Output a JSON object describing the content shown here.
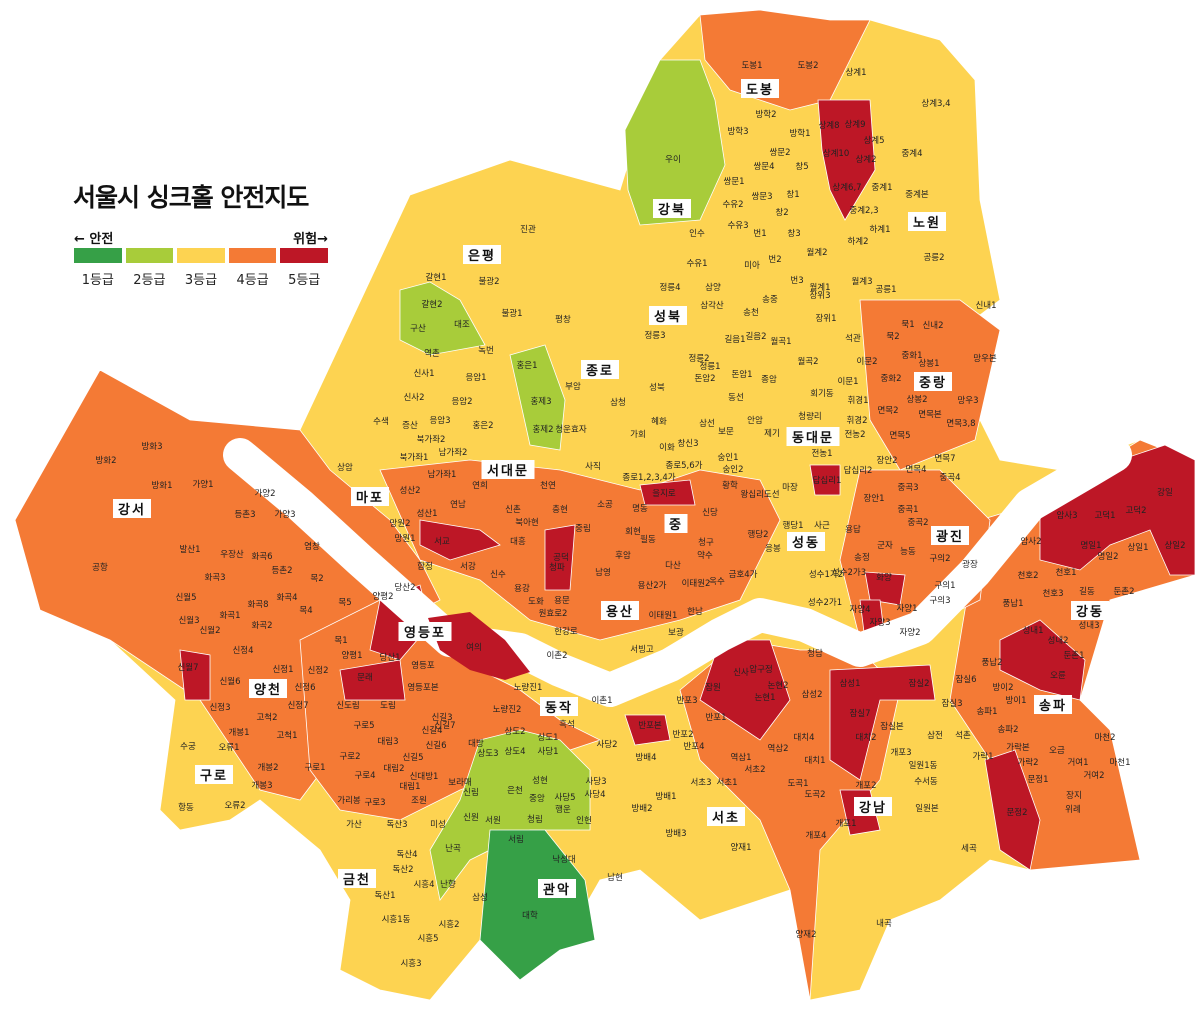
{
  "title": "서울시 싱크홀 안전지도",
  "legend": {
    "safe_label": "← 안전",
    "danger_label": "위험→",
    "grades": [
      {
        "label": "1등급",
        "color": "#36a047"
      },
      {
        "label": "2등급",
        "color": "#a8cc3a"
      },
      {
        "label": "3등급",
        "color": "#fdd351"
      },
      {
        "label": "4등급",
        "color": "#f47a35"
      },
      {
        "label": "5등급",
        "color": "#bd1726"
      }
    ]
  },
  "districts": [
    "도봉",
    "강북",
    "노원",
    "은평",
    "성북",
    "종로",
    "중랑",
    "동대문",
    "서대문",
    "마포",
    "중",
    "광진",
    "성동",
    "강서",
    "용산",
    "영등포",
    "강동",
    "양천",
    "송파",
    "동작",
    "구로",
    "강남",
    "서초",
    "금천",
    "관악"
  ],
  "dongs": [
    "도봉1",
    "도봉2",
    "상계1",
    "상계3,4",
    "방학2",
    "방학3",
    "방학1",
    "상계8",
    "상계9",
    "상계5",
    "상계10",
    "상계2",
    "중계4",
    "우이",
    "쌍문2",
    "쌍문1",
    "쌍문4",
    "창5",
    "상계6,7",
    "중계1",
    "중계본",
    "쌍문3",
    "수유2",
    "창1",
    "중계2,3",
    "하계1",
    "수유3",
    "창2",
    "번1",
    "창3",
    "하계2",
    "공릉2",
    "진관",
    "인수",
    "수유1",
    "미아",
    "번2",
    "월계2",
    "갈현1",
    "불광2",
    "정릉4",
    "삼양",
    "번3",
    "월계1",
    "월계3",
    "공릉1",
    "송중",
    "장위3",
    "갈현2",
    "불광1",
    "평창",
    "삼각산",
    "송천",
    "구산",
    "대조",
    "정릉3",
    "정릉2",
    "길음1",
    "길음2",
    "월곡1",
    "장위1",
    "석관",
    "묵1",
    "신내2",
    "신내1",
    "묵2",
    "역촌",
    "녹번",
    "홍은1",
    "돈암2",
    "정릉1",
    "돈암1",
    "종암",
    "월곡2",
    "이문2",
    "망우본",
    "중화1",
    "상봉1",
    "신사1",
    "응암1",
    "부암",
    "성북",
    "홍제3",
    "회기동",
    "이문1",
    "중화2",
    "상봉2",
    "망우3",
    "신사2",
    "응암2",
    "동선",
    "안암",
    "보문",
    "청량리",
    "휘경1",
    "면목2",
    "면목본",
    "면목3,8",
    "수색",
    "증산",
    "응암3",
    "삼청",
    "홍은2",
    "홍제2",
    "청운효자",
    "혜화",
    "이화",
    "삼선",
    "휘경2",
    "면목5",
    "면목7",
    "북가좌1",
    "북가좌2",
    "남가좌2",
    "남가좌1",
    "가회",
    "창신3",
    "제기",
    "전농2",
    "전농1",
    "답십리2",
    "답십리1",
    "상암",
    "성산2",
    "연희",
    "천연",
    "사직",
    "종로1,2,3,4가",
    "종로5,6가",
    "숭인2",
    "숭인1",
    "면목4",
    "장안2",
    "장안1",
    "중곡3",
    "중곡4",
    "방화2",
    "방화3",
    "방화1",
    "가양1",
    "가양2",
    "등촌3",
    "가양3",
    "성산1",
    "연남",
    "북아현",
    "신촌",
    "충현",
    "소공",
    "명동",
    "을지로",
    "신당",
    "황학",
    "왕십리도선",
    "마장",
    "중곡1",
    "중곡2",
    "능동",
    "구의2",
    "광장",
    "공항",
    "발산1",
    "우장산",
    "화곡6",
    "등촌2",
    "염창",
    "망원2",
    "망원1",
    "서교",
    "대흥",
    "공덕",
    "중림",
    "회현",
    "필동",
    "다산",
    "약수",
    "청구",
    "응봉",
    "행당1",
    "행당2",
    "사근",
    "용답",
    "군자",
    "화곡3",
    "화곡8",
    "화곡4",
    "목2",
    "합정",
    "서강",
    "신수",
    "용강",
    "청파",
    "남영",
    "후암",
    "용산2가",
    "이태원2",
    "옥수",
    "금호4가",
    "성수1가2",
    "성수2가3",
    "송정",
    "화양",
    "구의3",
    "구의1",
    "신월5",
    "화곡1",
    "화곡2",
    "목4",
    "목5",
    "양평2",
    "당산2",
    "도화",
    "용문",
    "원효로2",
    "이태원1",
    "한남",
    "성수2가1",
    "자양4",
    "자양3",
    "자양1",
    "자양2",
    "신월3",
    "신월2",
    "신월7",
    "목1",
    "양평1",
    "당산1",
    "여의",
    "한강로",
    "서빙고",
    "보광",
    "이촌2",
    "이촌1",
    "압구정",
    "신사",
    "청담",
    "잠원",
    "논현1",
    "논현2",
    "삼성2",
    "삼성1",
    "잠실2",
    "잠실6",
    "풍납2",
    "풍납1",
    "천호2",
    "천호1",
    "천호3",
    "암사2",
    "암사3",
    "고덕1",
    "고덕2",
    "강일",
    "명일1",
    "명일2",
    "상일1",
    "상일2",
    "길동",
    "둔촌2",
    "성내1",
    "성내2",
    "성내3",
    "둔촌1",
    "오륜",
    "신정4",
    "신정1",
    "신정2",
    "신정6",
    "신정7",
    "신정3",
    "신월6",
    "문래",
    "영등포",
    "영등포본",
    "신도림",
    "도림",
    "노량진1",
    "노량진2",
    "흑석",
    "신길3",
    "신길4",
    "대방",
    "반포3",
    "반포본",
    "반포2",
    "반포4",
    "반포1",
    "역삼1",
    "역삼2",
    "대치4",
    "대치2",
    "대치1",
    "잠실7",
    "잠실본",
    "잠실3",
    "송파1",
    "방이2",
    "방이1",
    "송파2",
    "석촌",
    "삼전",
    "가락본",
    "가락2",
    "가락1",
    "오금",
    "마천2",
    "거여1",
    "거여2",
    "마천1",
    "문정1",
    "장지",
    "위례",
    "일원1동",
    "개포3",
    "수서동",
    "개포2",
    "일원본",
    "개포1",
    "개포4",
    "도곡1",
    "도곡2",
    "세곡",
    "문정2",
    "내곡",
    "양재2",
    "양재1",
    "서초3",
    "서초1",
    "서초2",
    "방배4",
    "방배1",
    "방배2",
    "방배3",
    "사당2",
    "사당3",
    "사당4",
    "사당1",
    "사당5",
    "수궁",
    "개봉1",
    "오류1",
    "개봉2",
    "개봉3",
    "고척2",
    "고척1",
    "구로1",
    "구로2",
    "구로5",
    "구로3",
    "구로4",
    "대림3",
    "대림2",
    "대림1",
    "신길5",
    "신길6",
    "신길7",
    "항동",
    "오류2",
    "가리봉",
    "신대방1",
    "조원",
    "보라매",
    "상도2",
    "상도4",
    "상도3",
    "상도1",
    "은천",
    "성현",
    "중앙",
    "청림",
    "행운",
    "신림",
    "가산",
    "독산3",
    "미성",
    "신원",
    "서원",
    "서림",
    "인헌",
    "낙성대",
    "독산4",
    "독산2",
    "독산1",
    "난곡",
    "난향",
    "시흥4",
    "삼성",
    "남현",
    "대학",
    "시흥1동",
    "시흥5",
    "시흥2",
    "시흥3"
  ]
}
